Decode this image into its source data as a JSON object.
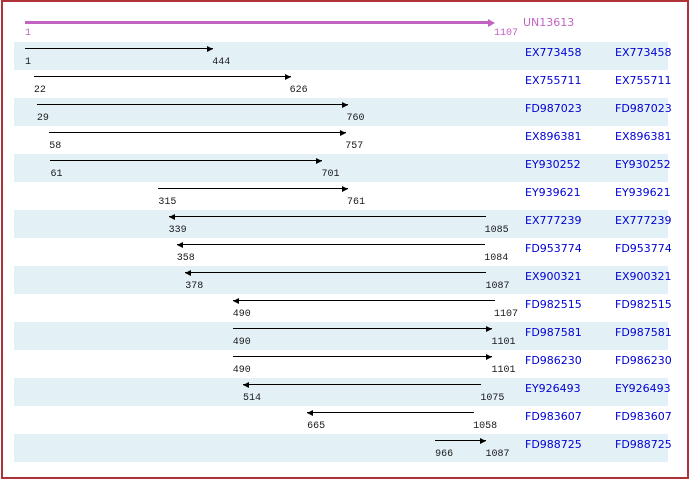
{
  "colors": {
    "background": "#FFFFFF",
    "border": "#AE3237",
    "row_band": "#E3F0F6",
    "accession_link": "#0000D5",
    "consensus": "#C263C2",
    "alignment": "#000000"
  },
  "header": {
    "name": "UN13613",
    "start_label": "1",
    "end_label": "1107"
  },
  "rows": [
    {
      "id": "EX773458",
      "start": 1,
      "end": 444,
      "direction": "forward"
    },
    {
      "id": "EX755711",
      "start": 22,
      "end": 626,
      "direction": "forward"
    },
    {
      "id": "FD987023",
      "start": 29,
      "end": 760,
      "direction": "forward"
    },
    {
      "id": "EX896381",
      "start": 58,
      "end": 757,
      "direction": "forward"
    },
    {
      "id": "EY930252",
      "start": 61,
      "end": 701,
      "direction": "forward"
    },
    {
      "id": "EY939621",
      "start": 315,
      "end": 761,
      "direction": "forward"
    },
    {
      "id": "EX777239",
      "start": 339,
      "end": 1085,
      "direction": "reverse"
    },
    {
      "id": "FD953774",
      "start": 358,
      "end": 1084,
      "direction": "reverse"
    },
    {
      "id": "EX900321",
      "start": 378,
      "end": 1087,
      "direction": "reverse"
    },
    {
      "id": "FD982515",
      "start": 490,
      "end": 1107,
      "direction": "reverse"
    },
    {
      "id": "FD987581",
      "start": 490,
      "end": 1101,
      "direction": "forward"
    },
    {
      "id": "FD986230",
      "start": 490,
      "end": 1101,
      "direction": "forward"
    },
    {
      "id": "EY926493",
      "start": 514,
      "end": 1075,
      "direction": "reverse"
    },
    {
      "id": "FD983607",
      "start": 665,
      "end": 1058,
      "direction": "reverse"
    },
    {
      "id": "FD988725",
      "start": 966,
      "end": 1087,
      "direction": "forward"
    }
  ],
  "chart_data": {
    "type": "bar",
    "subtype": "range-alignment",
    "title": "UN13613",
    "xlim": [
      1,
      1107
    ],
    "grid": false,
    "legend": false,
    "consensus": {
      "label": "UN13613",
      "start": 1,
      "end": 1107,
      "direction": "forward"
    },
    "categories": [
      "EX773458",
      "EX755711",
      "FD987023",
      "EX896381",
      "EY930252",
      "EY939621",
      "EX777239",
      "FD953774",
      "EX900321",
      "FD982515",
      "FD987581",
      "FD986230",
      "EY926493",
      "FD983607",
      "FD988725"
    ],
    "series": [
      {
        "name": "start",
        "values": [
          1,
          22,
          29,
          58,
          61,
          315,
          339,
          358,
          378,
          490,
          490,
          490,
          514,
          665,
          966
        ]
      },
      {
        "name": "end",
        "values": [
          444,
          626,
          760,
          757,
          701,
          761,
          1085,
          1084,
          1087,
          1107,
          1101,
          1101,
          1075,
          1058,
          1087
        ]
      },
      {
        "name": "strand",
        "values": [
          "+",
          "+",
          "+",
          "+",
          "+",
          "+",
          "-",
          "-",
          "-",
          "-",
          "+",
          "+",
          "-",
          "-",
          "+"
        ]
      }
    ]
  }
}
